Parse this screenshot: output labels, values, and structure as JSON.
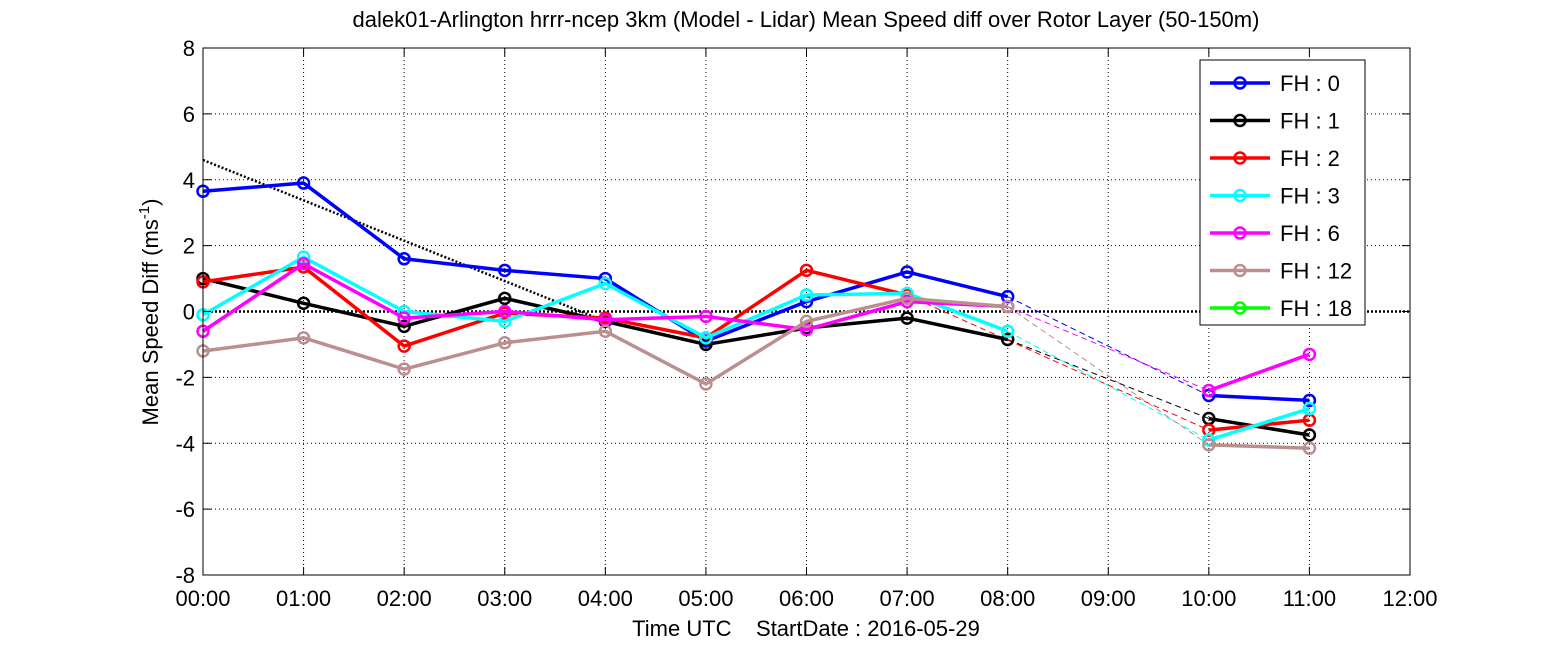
{
  "chart_data": {
    "type": "line",
    "title": "dalek01-Arlington hrrr-ncep 3km (Model - Lidar) Mean Speed diff over Rotor Layer (50-150m)",
    "xlabel": "Time UTC    StartDate : 2016-05-29",
    "ylabel_main": "Mean Speed Diff (ms",
    "ylabel_sup": "-1",
    "ylabel_close": ")",
    "xlim": [
      0,
      12
    ],
    "ylim": [
      -8,
      8
    ],
    "xticks": [
      0,
      1,
      2,
      3,
      4,
      5,
      6,
      7,
      8,
      9,
      10,
      11,
      12
    ],
    "xtick_labels": [
      "00:00",
      "01:00",
      "02:00",
      "03:00",
      "04:00",
      "05:00",
      "06:00",
      "07:00",
      "08:00",
      "09:00",
      "10:00",
      "11:00",
      "12:00"
    ],
    "yticks": [
      -8,
      -6,
      -4,
      -2,
      0,
      2,
      4,
      6,
      8
    ],
    "ytick_labels": [
      "-8",
      "-6",
      "-4",
      "-2",
      "0",
      "2",
      "4",
      "6",
      "8"
    ],
    "grid": true,
    "legend_position": "top-right",
    "zero_reference_line": true,
    "trend_line": {
      "x": [
        0,
        4
      ],
      "y": [
        4.6,
        -0.3
      ]
    },
    "series": [
      {
        "name": "FH : 0",
        "color": "#0000ff",
        "segments": [
          {
            "x": [
              0,
              1,
              2,
              3,
              4,
              5,
              6,
              7,
              8
            ],
            "y": [
              3.65,
              3.9,
              1.6,
              1.25,
              1.0,
              -0.9,
              0.3,
              1.2,
              0.45
            ]
          },
          {
            "x": [
              10,
              11
            ],
            "y": [
              -2.55,
              -2.7
            ]
          }
        ]
      },
      {
        "name": "FH : 1",
        "color": "#000000",
        "segments": [
          {
            "x": [
              0,
              1,
              2,
              3,
              4,
              5,
              6,
              7,
              8
            ],
            "y": [
              1.0,
              0.25,
              -0.45,
              0.4,
              -0.3,
              -1.0,
              -0.5,
              -0.2,
              -0.85
            ]
          },
          {
            "x": [
              10,
              11
            ],
            "y": [
              -3.25,
              -3.75
            ]
          }
        ]
      },
      {
        "name": "FH : 2",
        "color": "#ff0000",
        "segments": [
          {
            "x": [
              0,
              1,
              2,
              3,
              4,
              5,
              6,
              7
            ],
            "y": [
              0.9,
              1.35,
              -1.05,
              -0.05,
              -0.2,
              -0.8,
              1.25,
              0.5
            ]
          },
          {
            "x": [
              10,
              11
            ],
            "y": [
              -3.6,
              -3.3
            ]
          }
        ]
      },
      {
        "name": "FH : 3",
        "color": "#00ffff",
        "segments": [
          {
            "x": [
              0,
              1,
              2,
              3,
              4,
              5,
              6,
              7,
              8
            ],
            "y": [
              -0.1,
              1.65,
              0.0,
              -0.3,
              0.85,
              -0.8,
              0.5,
              0.55,
              -0.6
            ]
          },
          {
            "x": [
              10,
              11
            ],
            "y": [
              -3.9,
              -2.95
            ]
          }
        ]
      },
      {
        "name": "FH : 6",
        "color": "#ff00ff",
        "segments": [
          {
            "x": [
              0,
              1,
              2,
              3,
              4,
              5,
              6,
              7,
              8
            ],
            "y": [
              -0.6,
              1.45,
              -0.2,
              0.0,
              -0.25,
              -0.15,
              -0.55,
              0.3,
              0.15
            ]
          },
          {
            "x": [
              10,
              11
            ],
            "y": [
              -2.4,
              -1.3
            ]
          }
        ]
      },
      {
        "name": "FH : 12",
        "color": "#bc8f8f",
        "segments": [
          {
            "x": [
              0,
              1,
              2,
              3,
              4,
              5,
              6,
              7,
              8
            ],
            "y": [
              -1.2,
              -0.8,
              -1.75,
              -0.95,
              -0.6,
              -2.2,
              -0.3,
              0.4,
              0.15
            ]
          },
          {
            "x": [
              10,
              11
            ],
            "y": [
              -4.05,
              -4.15
            ]
          }
        ]
      },
      {
        "name": "FH : 18",
        "color": "#00ff00",
        "segments": []
      }
    ]
  }
}
